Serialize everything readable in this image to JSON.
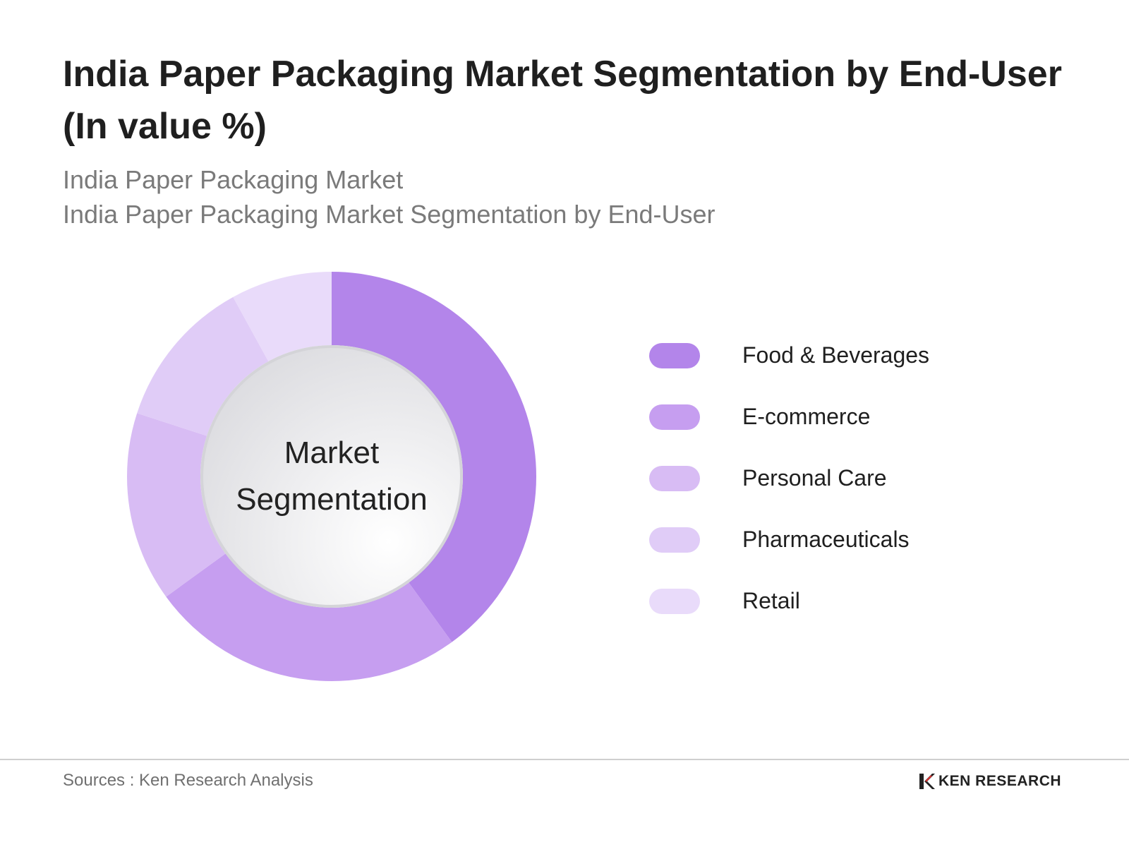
{
  "title": "India Paper Packaging Market Segmentation by End-User (In value %)",
  "subtitle_lines": [
    "India Paper Packaging Market",
    "India Paper Packaging Market Segmentation by End-User"
  ],
  "center_label": [
    "Market",
    "Segmentation"
  ],
  "chart_data": {
    "type": "pie",
    "donut": true,
    "categories": [
      "Food & Beverages",
      "E-commerce",
      "Personal Care",
      "Pharmaceuticals",
      "Retail"
    ],
    "values": [
      40,
      25,
      15,
      12,
      8
    ],
    "colors": [
      "#b385ea",
      "#c69ef0",
      "#d8bcf4",
      "#e0ccf7",
      "#e9dbfa"
    ],
    "legend_position": "right"
  },
  "footer": {
    "source": "Sources : Ken Research Analysis",
    "logo_text": "KEN RESEARCH",
    "logo_icon": "ken-research-logo-icon"
  }
}
